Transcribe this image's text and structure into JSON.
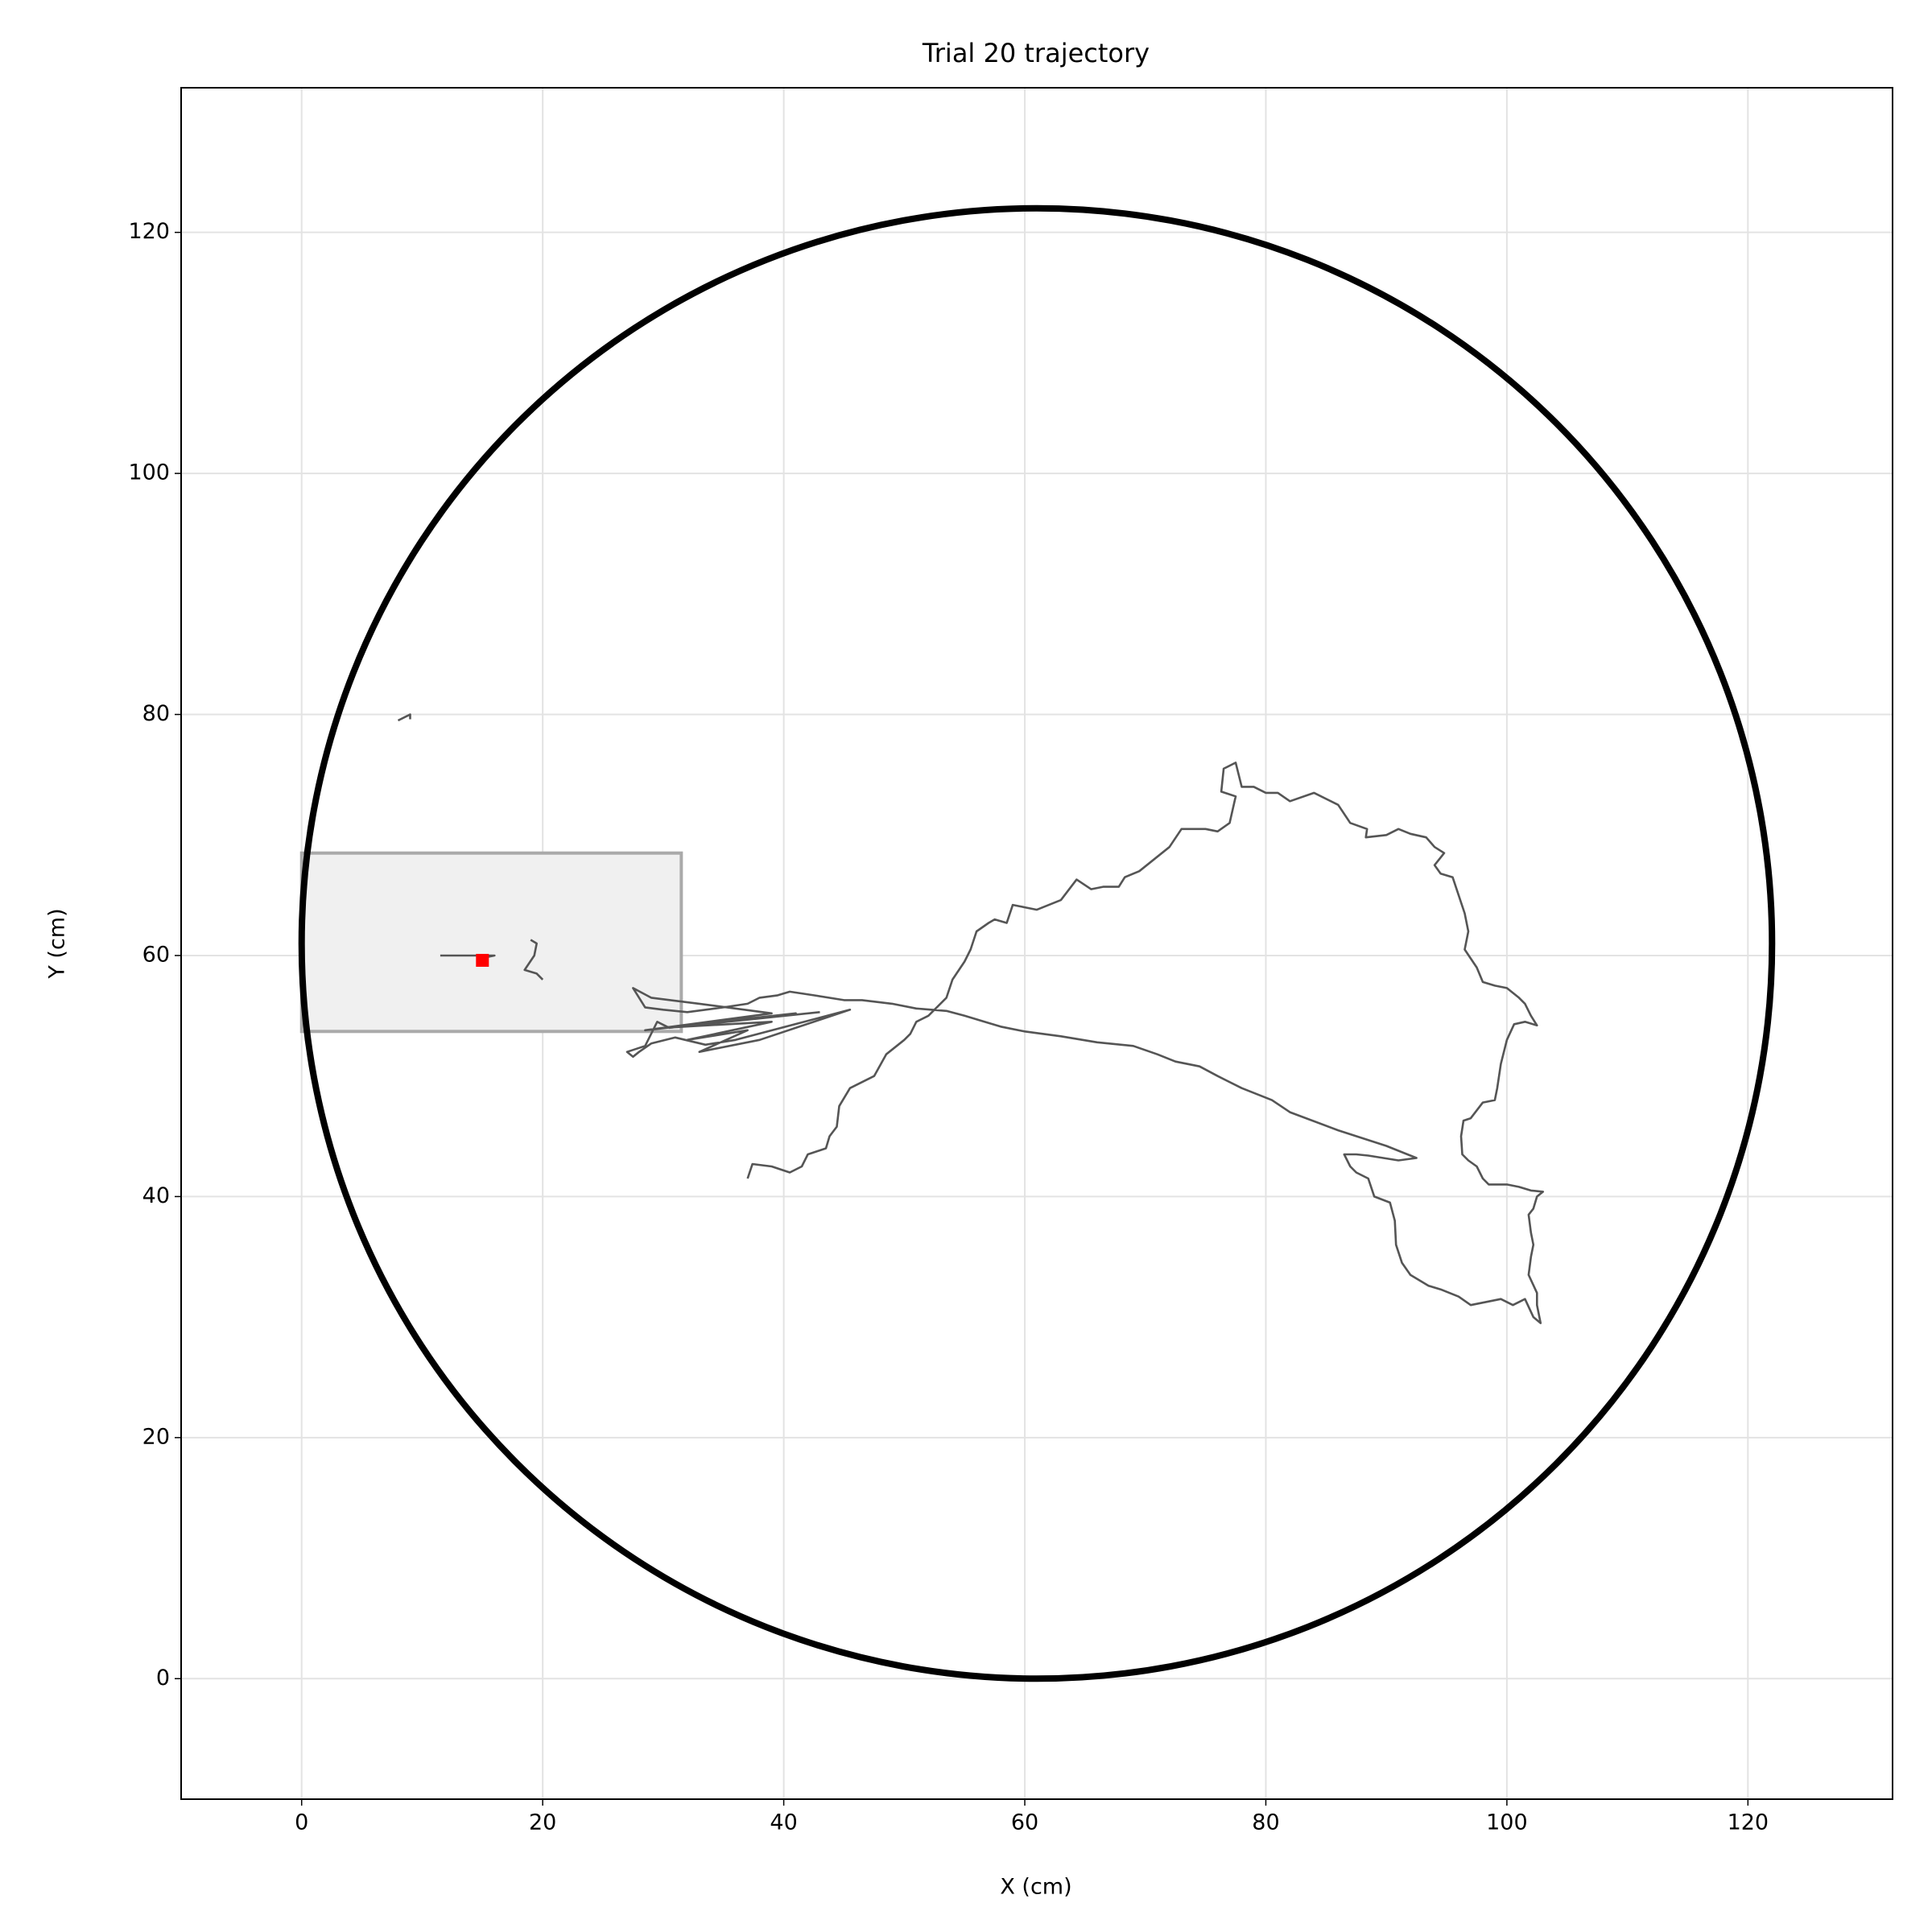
{
  "chart_data": {
    "type": "line",
    "title": "Trial 20 trajectory",
    "xlabel": "X (cm)",
    "ylabel": "Y (cm)",
    "color": "#555555",
    "grid": true,
    "xlim": [
      -10,
      132
    ],
    "ylim": [
      -10,
      132
    ],
    "xticks": [
      0,
      20,
      40,
      60,
      80,
      100,
      120
    ],
    "yticks": [
      0,
      20,
      40,
      60,
      80,
      100,
      120
    ],
    "arena": {
      "center": [
        61,
        61
      ],
      "radius": 61,
      "color": "#000000"
    },
    "zone": {
      "x": [
        0,
        31.5
      ],
      "y": [
        53.7,
        68.5
      ],
      "color": "#f0f0f0",
      "edge": "#aaaaaa"
    },
    "goal": {
      "x": 15,
      "y": 59.6,
      "color": "#ff0000"
    },
    "x": [
      8,
      9,
      9,
      null,
      11.5,
      16,
      15,
      null,
      19,
      19.5,
      19.3,
      18.5,
      19.5,
      20,
      null,
      37,
      37.4,
      39,
      40.5,
      41.5,
      42,
      43.5,
      43.8,
      44.4,
      44.6,
      45.5,
      46.5,
      47.5,
      48.5,
      50,
      50.5,
      51,
      52,
      53.5,
      54,
      55,
      55.5,
      56,
      57,
      57.5,
      58.5,
      59,
      60,
      61,
      63,
      64.3,
      65.5,
      66.5,
      67.8,
      68.3,
      69.5,
      72,
      73,
      75,
      76,
      77,
      77.5,
      76.3,
      76.5,
      77.5,
      78,
      79,
      80,
      81,
      82,
      84,
      86,
      87,
      88.4,
      88.3,
      90,
      91,
      92,
      93.3,
      94,
      94.8,
      94,
      94.5,
      95.5,
      96.5,
      96.8,
      96.5,
      97.5,
      98,
      99,
      100,
      101,
      101.5,
      102,
      102.5,
      101.5,
      100.6,
      100,
      99.5,
      99.2,
      99,
      98,
      97,
      96.4,
      96.2,
      96.3,
      96.8,
      97.5,
      98,
      98.5,
      100,
      101,
      102,
      103,
      102.5,
      102.2,
      101.8,
      102,
      102.2,
      102,
      101.8,
      102.5,
      102.5,
      102.8,
      102.2,
      101.5,
      100.5,
      99.5,
      98,
      97,
      96,
      94.5,
      93.5,
      92,
      91.3,
      90.8,
      90.7,
      90.3,
      89,
      88.5,
      87.5,
      87,
      86.5,
      87.5,
      88.5,
      91,
      92.5,
      90,
      86,
      82,
      80.5,
      78,
      76,
      74.5,
      72.5,
      71,
      69,
      66,
      63,
      60,
      58,
      55,
      53.5,
      51,
      49,
      46.5,
      45,
      42.5,
      40.5,
      39.5,
      38,
      37,
      35,
      32,
      30,
      28.5,
      27.5,
      29,
      33,
      39,
      28.5,
      41,
      30,
      39,
      32,
      37,
      33,
      38,
      45.5,
      36,
      33.5,
      31,
      29,
      28,
      27.5,
      27,
      28.5,
      29.5,
      30.5,
      43
    ],
    "values": [
      79.5,
      80,
      79.6,
      null,
      60,
      60,
      59.8,
      null,
      61.3,
      61,
      60,
      58.8,
      58.5,
      58,
      null,
      41.5,
      42.7,
      42.5,
      42,
      42.5,
      43.5,
      44,
      45,
      45.8,
      47.5,
      49,
      49.5,
      50,
      51.8,
      53,
      53.5,
      54.5,
      55,
      56.5,
      58,
      59.5,
      60.5,
      62,
      62.7,
      63,
      62.7,
      64.2,
      64,
      63.8,
      64.6,
      66.3,
      65.5,
      65.7,
      65.7,
      66.5,
      67,
      69,
      70.5,
      70.5,
      70.3,
      71,
      73.2,
      73.6,
      75.5,
      76,
      74,
      74,
      73.5,
      73.5,
      72.8,
      73.5,
      72.5,
      71,
      70.5,
      69.8,
      70,
      70.5,
      70.1,
      69.8,
      69,
      68.5,
      67.5,
      66.8,
      66.5,
      63.5,
      62,
      60.5,
      59,
      57.8,
      57.5,
      57.3,
      56.5,
      56,
      55,
      54.2,
      54.5,
      54.3,
      53,
      51,
      49,
      48,
      47.8,
      46.5,
      46.3,
      45,
      43.5,
      43,
      42.5,
      41.5,
      41,
      41,
      40.8,
      40.5,
      40.4,
      40,
      39,
      38.5,
      37,
      36,
      35,
      33.5,
      32,
      31,
      29.5,
      30,
      31.5,
      31,
      31.5,
      31.2,
      31,
      31.7,
      32.3,
      32.6,
      33.5,
      34.5,
      36,
      38,
      39.5,
      40,
      41.5,
      42,
      42.5,
      43.5,
      43.5,
      43.4,
      43,
      43.2,
      44.2,
      45.5,
      47,
      48,
      49,
      50,
      50.8,
      51.2,
      51.8,
      52.5,
      52.8,
      53.3,
      53.7,
      54.1,
      55,
      55.4,
      55.6,
      56,
      56.3,
      56.3,
      56.7,
      57,
      56.7,
      56.5,
      56,
      55.7,
      55.3,
      55.5,
      55.7,
      57.3,
      56.5,
      56,
      55.2,
      53.8,
      55.2,
      54,
      54.5,
      53,
      53.8,
      52,
      53,
      55.5,
      53,
      52.6,
      53.2,
      52.7,
      52,
      51.6,
      52,
      52.5,
      54.5,
      54,
      55.3
    ]
  }
}
